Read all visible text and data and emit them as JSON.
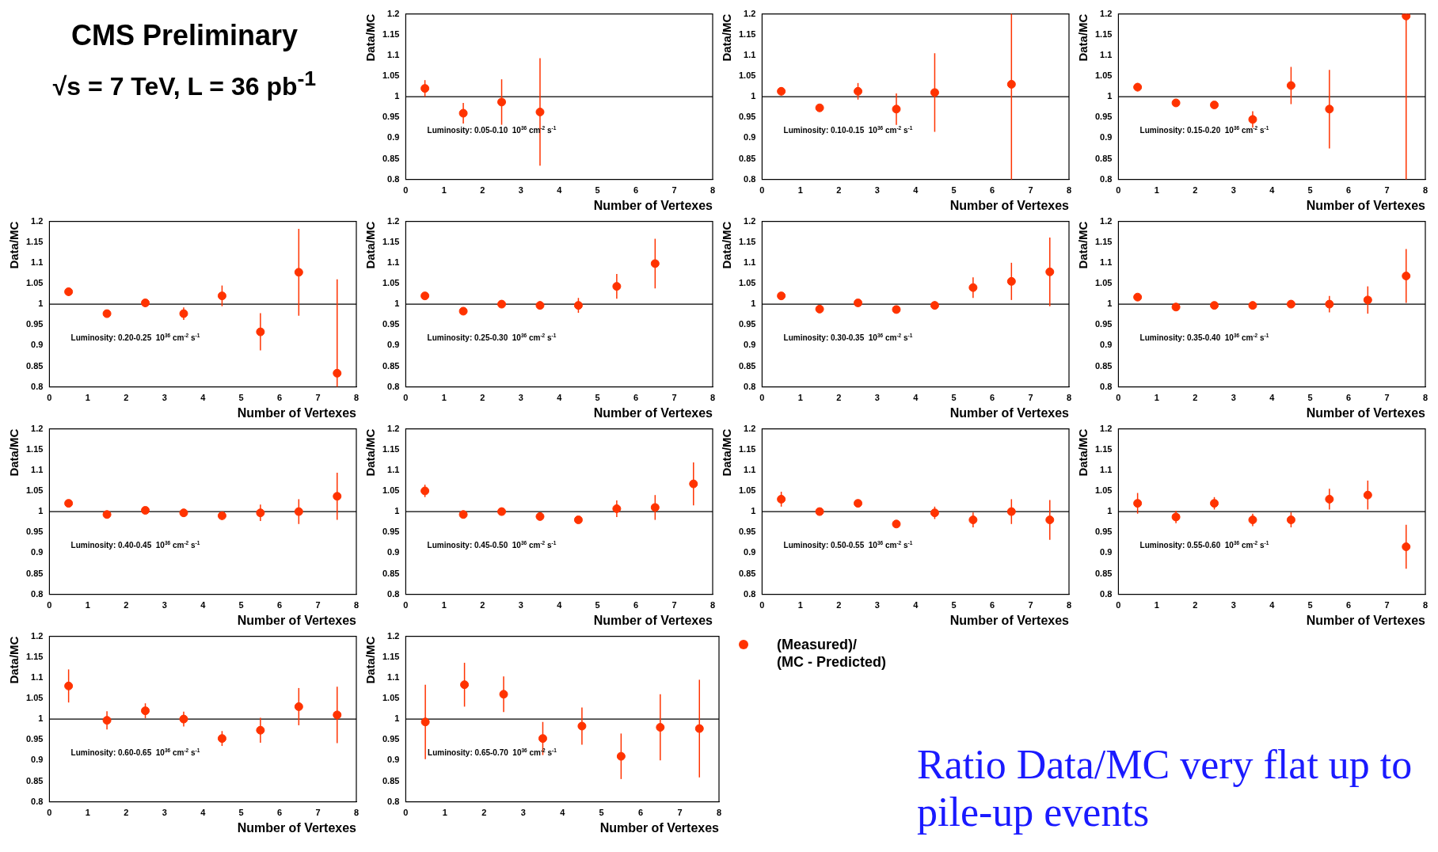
{
  "chart_data": [
    {
      "type": "other",
      "title": "CMS Preliminary",
      "subtitle": "√s = 7 TeV, L = 36 pb$^{-1}$"
    },
    {
      "type": "scatter",
      "xlabel": "Number of Vertexes",
      "ylabel": "Data/MC",
      "annotations": [
        "Luminosity: 0.05-0.10  10$^{36}$ cm$^{-2}$ s$^{-1}$"
      ],
      "xlim": [
        0,
        8
      ],
      "xticks": [
        0,
        1,
        2,
        3,
        4,
        5,
        6,
        7,
        8
      ],
      "ylim": [
        0.8,
        1.2
      ],
      "yticks": [
        0.8,
        0.85,
        0.9,
        0.95,
        1,
        1.05,
        1.1,
        1.15,
        1.2
      ],
      "marker": "circle",
      "ref_lines": [
        {
          "axis": "y",
          "value": 1
        }
      ],
      "series": [
        {
          "color": "#ff3300",
          "x": [
            0.5,
            1.5,
            2.5,
            3.5
          ],
          "values": [
            1.02,
            0.96,
            0.987,
            0.963
          ],
          "errors": [
            0.02,
            0.025,
            0.055,
            0.13
          ]
        }
      ]
    },
    {
      "type": "scatter",
      "xlabel": "Number of Vertexes",
      "ylabel": "Data/MC",
      "annotations": [
        "Luminosity: 0.10-0.15  10$^{36}$ cm$^{-2}$ s$^{-1}$"
      ],
      "xlim": [
        0,
        8
      ],
      "xticks": [
        0,
        1,
        2,
        3,
        4,
        5,
        6,
        7,
        8
      ],
      "ylim": [
        0.8,
        1.2
      ],
      "yticks": [
        0.8,
        0.85,
        0.9,
        0.95,
        1,
        1.05,
        1.1,
        1.15,
        1.2
      ],
      "marker": "circle",
      "ref_lines": [
        {
          "axis": "y",
          "value": 1
        }
      ],
      "series": [
        {
          "color": "#ff3300",
          "x": [
            0.5,
            1.5,
            2.5,
            3.5,
            4.5,
            6.5
          ],
          "values": [
            1.013,
            0.973,
            1.013,
            0.97,
            1.01,
            1.03
          ],
          "errors": [
            0.01,
            0.008,
            0.02,
            0.038,
            0.095,
            [
              0.8,
              1.2
            ]
          ]
        }
      ]
    },
    {
      "type": "scatter",
      "xlabel": "Number of Vertexes",
      "ylabel": "Data/MC",
      "annotations": [
        "Luminosity: 0.15-0.20  10$^{36}$ cm$^{-2}$ s$^{-1}$"
      ],
      "xlim": [
        0,
        8
      ],
      "xticks": [
        0,
        1,
        2,
        3,
        4,
        5,
        6,
        7,
        8
      ],
      "ylim": [
        0.8,
        1.2
      ],
      "yticks": [
        0.8,
        0.85,
        0.9,
        0.95,
        1,
        1.05,
        1.1,
        1.15,
        1.2
      ],
      "marker": "circle",
      "ref_lines": [
        {
          "axis": "y",
          "value": 1
        }
      ],
      "series": [
        {
          "color": "#ff3300",
          "x": [
            0.5,
            1.5,
            2.5,
            3.5,
            4.5,
            5.5,
            7.5
          ],
          "values": [
            1.023,
            0.985,
            0.98,
            0.945,
            1.027,
            0.97,
            1.195
          ],
          "errors": [
            0.01,
            0.008,
            0.008,
            0.02,
            0.045,
            0.095,
            [
              0.8,
              1.2
            ]
          ]
        }
      ]
    },
    {
      "type": "scatter",
      "xlabel": "Number of Vertexes",
      "ylabel": "Data/MC",
      "annotations": [
        "Luminosity: 0.20-0.25  10$^{36}$ cm$^{-2}$ s$^{-1}$"
      ],
      "xlim": [
        0,
        8
      ],
      "xticks": [
        0,
        1,
        2,
        3,
        4,
        5,
        6,
        7,
        8
      ],
      "ylim": [
        0.8,
        1.2
      ],
      "yticks": [
        0.8,
        0.85,
        0.9,
        0.95,
        1,
        1.05,
        1.1,
        1.15,
        1.2
      ],
      "marker": "circle",
      "ref_lines": [
        {
          "axis": "y",
          "value": 1
        }
      ],
      "series": [
        {
          "color": "#ff3300",
          "x": [
            0.5,
            1.5,
            2.5,
            3.5,
            4.5,
            5.5,
            6.5,
            7.5
          ],
          "values": [
            1.03,
            0.977,
            1.003,
            0.977,
            1.02,
            0.933,
            1.077,
            0.833
          ],
          "errors": [
            0.01,
            0.008,
            0.01,
            0.015,
            0.025,
            0.045,
            0.105,
            [
              0.8,
              1.06
            ]
          ]
        }
      ]
    },
    {
      "type": "scatter",
      "xlabel": "Number of Vertexes",
      "ylabel": "Data/MC",
      "annotations": [
        "Luminosity: 0.25-0.30  10$^{36}$ cm$^{-2}$ s$^{-1}$"
      ],
      "xlim": [
        0,
        8
      ],
      "xticks": [
        0,
        1,
        2,
        3,
        4,
        5,
        6,
        7,
        8
      ],
      "ylim": [
        0.8,
        1.2
      ],
      "yticks": [
        0.8,
        0.85,
        0.9,
        0.95,
        1,
        1.05,
        1.1,
        1.15,
        1.2
      ],
      "marker": "circle",
      "ref_lines": [
        {
          "axis": "y",
          "value": 1
        }
      ],
      "series": [
        {
          "color": "#ff3300",
          "x": [
            0.5,
            1.5,
            2.5,
            3.5,
            4.5,
            5.5,
            6.5
          ],
          "values": [
            1.02,
            0.983,
            1.0,
            0.997,
            0.997,
            1.043,
            1.098
          ],
          "errors": [
            0.008,
            0.008,
            0.008,
            0.01,
            0.018,
            0.03,
            0.06
          ]
        }
      ]
    },
    {
      "type": "scatter",
      "xlabel": "Number of Vertexes",
      "ylabel": "Data/MC",
      "annotations": [
        "Luminosity: 0.30-0.35  10$^{36}$ cm$^{-2}$ s$^{-1}$"
      ],
      "xlim": [
        0,
        8
      ],
      "xticks": [
        0,
        1,
        2,
        3,
        4,
        5,
        6,
        7,
        8
      ],
      "ylim": [
        0.8,
        1.2
      ],
      "yticks": [
        0.8,
        0.85,
        0.9,
        0.95,
        1,
        1.05,
        1.1,
        1.15,
        1.2
      ],
      "marker": "circle",
      "ref_lines": [
        {
          "axis": "y",
          "value": 1
        }
      ],
      "series": [
        {
          "color": "#ff3300",
          "x": [
            0.5,
            1.5,
            2.5,
            3.5,
            4.5,
            5.5,
            6.5,
            7.5
          ],
          "values": [
            1.02,
            0.988,
            1.003,
            0.987,
            0.997,
            1.04,
            1.055,
            1.078
          ],
          "errors": [
            0.008,
            0.006,
            0.008,
            0.008,
            0.01,
            0.025,
            0.045,
            0.083
          ]
        }
      ]
    },
    {
      "type": "scatter",
      "xlabel": "Number of Vertexes",
      "ylabel": "Data/MC",
      "annotations": [
        "Luminosity: 0.35-0.40  10$^{36}$ cm$^{-2}$ s$^{-1}$"
      ],
      "xlim": [
        0,
        8
      ],
      "xticks": [
        0,
        1,
        2,
        3,
        4,
        5,
        6,
        7,
        8
      ],
      "ylim": [
        0.8,
        1.2
      ],
      "yticks": [
        0.8,
        0.85,
        0.9,
        0.95,
        1,
        1.05,
        1.1,
        1.15,
        1.2
      ],
      "marker": "circle",
      "ref_lines": [
        {
          "axis": "y",
          "value": 1
        }
      ],
      "series": [
        {
          "color": "#ff3300",
          "x": [
            0.5,
            1.5,
            2.5,
            3.5,
            4.5,
            5.5,
            6.5,
            7.5
          ],
          "values": [
            1.017,
            0.993,
            0.997,
            0.997,
            1.0,
            1.0,
            1.01,
            1.068
          ],
          "errors": [
            0.008,
            0.006,
            0.006,
            0.007,
            0.008,
            0.02,
            0.033,
            0.065
          ]
        }
      ]
    },
    {
      "type": "scatter",
      "xlabel": "Number of Vertexes",
      "ylabel": "Data/MC",
      "annotations": [
        "Luminosity: 0.40-0.45  10$^{36}$ cm$^{-2}$ s$^{-1}$"
      ],
      "xlim": [
        0,
        8
      ],
      "xticks": [
        0,
        1,
        2,
        3,
        4,
        5,
        6,
        7,
        8
      ],
      "ylim": [
        0.8,
        1.2
      ],
      "yticks": [
        0.8,
        0.85,
        0.9,
        0.95,
        1,
        1.05,
        1.1,
        1.15,
        1.2
      ],
      "marker": "circle",
      "ref_lines": [
        {
          "axis": "y",
          "value": 1
        }
      ],
      "series": [
        {
          "color": "#ff3300",
          "x": [
            0.5,
            1.5,
            2.5,
            3.5,
            4.5,
            5.5,
            6.5,
            7.5
          ],
          "values": [
            1.02,
            0.993,
            1.003,
            0.997,
            0.99,
            0.997,
            1.0,
            1.037
          ],
          "errors": [
            0.008,
            0.006,
            0.007,
            0.007,
            0.01,
            0.02,
            0.03,
            0.057
          ]
        }
      ]
    },
    {
      "type": "scatter",
      "xlabel": "Number of Vertexes",
      "ylabel": "Data/MC",
      "annotations": [
        "Luminosity: 0.45-0.50  10$^{36}$ cm$^{-2}$ s$^{-1}$"
      ],
      "xlim": [
        0,
        8
      ],
      "xticks": [
        0,
        1,
        2,
        3,
        4,
        5,
        6,
        7,
        8
      ],
      "ylim": [
        0.8,
        1.2
      ],
      "yticks": [
        0.8,
        0.85,
        0.9,
        0.95,
        1,
        1.05,
        1.1,
        1.15,
        1.2
      ],
      "marker": "circle",
      "ref_lines": [
        {
          "axis": "y",
          "value": 1
        }
      ],
      "series": [
        {
          "color": "#ff3300",
          "x": [
            0.5,
            1.5,
            2.5,
            3.5,
            4.5,
            5.5,
            6.5,
            7.5
          ],
          "values": [
            1.05,
            0.993,
            1.0,
            0.988,
            0.98,
            1.007,
            1.01,
            1.067
          ],
          "errors": [
            0.015,
            0.007,
            0.008,
            0.008,
            0.008,
            0.02,
            0.03,
            0.052
          ]
        }
      ]
    },
    {
      "type": "scatter",
      "xlabel": "Number of Vertexes",
      "ylabel": "Data/MC",
      "annotations": [
        "Luminosity: 0.50-0.55  10$^{36}$ cm$^{-2}$ s$^{-1}$"
      ],
      "xlim": [
        0,
        8
      ],
      "xticks": [
        0,
        1,
        2,
        3,
        4,
        5,
        6,
        7,
        8
      ],
      "ylim": [
        0.8,
        1.2
      ],
      "yticks": [
        0.8,
        0.85,
        0.9,
        0.95,
        1,
        1.05,
        1.1,
        1.15,
        1.2
      ],
      "marker": "circle",
      "ref_lines": [
        {
          "axis": "y",
          "value": 1
        }
      ],
      "series": [
        {
          "color": "#ff3300",
          "x": [
            0.5,
            1.5,
            2.5,
            3.5,
            4.5,
            5.5,
            6.5,
            7.5
          ],
          "values": [
            1.03,
            1.0,
            1.02,
            0.97,
            0.997,
            0.98,
            1.0,
            0.98
          ],
          "errors": [
            0.018,
            0.007,
            0.008,
            0.008,
            0.015,
            0.018,
            0.03,
            0.048
          ]
        }
      ]
    },
    {
      "type": "scatter",
      "xlabel": "Number of Vertexes",
      "ylabel": "Data/MC",
      "annotations": [
        "Luminosity: 0.55-0.60  10$^{36}$ cm$^{-2}$ s$^{-1}$"
      ],
      "xlim": [
        0,
        8
      ],
      "xticks": [
        0,
        1,
        2,
        3,
        4,
        5,
        6,
        7,
        8
      ],
      "ylim": [
        0.8,
        1.2
      ],
      "yticks": [
        0.8,
        0.85,
        0.9,
        0.95,
        1,
        1.05,
        1.1,
        1.15,
        1.2
      ],
      "marker": "circle",
      "ref_lines": [
        {
          "axis": "y",
          "value": 1
        }
      ],
      "series": [
        {
          "color": "#ff3300",
          "x": [
            0.5,
            1.5,
            2.5,
            3.5,
            4.5,
            5.5,
            6.5,
            7.5
          ],
          "values": [
            1.02,
            0.987,
            1.02,
            0.98,
            0.98,
            1.03,
            1.04,
            0.915
          ],
          "errors": [
            0.025,
            0.015,
            0.015,
            0.015,
            0.018,
            0.025,
            0.035,
            0.053
          ]
        }
      ]
    },
    {
      "type": "scatter",
      "xlabel": "Number of Vertexes",
      "ylabel": "Data/MC",
      "annotations": [
        "Luminosity: 0.60-0.65  10$^{36}$ cm$^{-2}$ s$^{-1}$"
      ],
      "xlim": [
        0,
        8
      ],
      "xticks": [
        0,
        1,
        2,
        3,
        4,
        5,
        6,
        7,
        8
      ],
      "ylim": [
        0.8,
        1.2
      ],
      "yticks": [
        0.8,
        0.85,
        0.9,
        0.95,
        1,
        1.05,
        1.1,
        1.15,
        1.2
      ],
      "marker": "circle",
      "ref_lines": [
        {
          "axis": "y",
          "value": 1
        }
      ],
      "series": [
        {
          "color": "#ff3300",
          "x": [
            0.5,
            1.5,
            2.5,
            3.5,
            4.5,
            5.5,
            6.5,
            7.5
          ],
          "values": [
            1.08,
            0.997,
            1.02,
            1.0,
            0.953,
            0.973,
            1.03,
            1.01
          ],
          "errors": [
            0.04,
            0.022,
            0.018,
            0.018,
            0.018,
            0.03,
            0.045,
            0.068
          ]
        }
      ]
    },
    {
      "type": "scatter",
      "xlabel": "Number of Vertexes",
      "ylabel": "Data/MC",
      "annotations": [
        "Luminosity: 0.65-0.70  10$^{36}$ cm$^{-2}$ s$^{-1}$"
      ],
      "xlim": [
        0,
        8
      ],
      "xticks": [
        0,
        1,
        2,
        3,
        4,
        5,
        6,
        7,
        8
      ],
      "ylim": [
        0.8,
        1.2
      ],
      "yticks": [
        0.8,
        0.85,
        0.9,
        0.95,
        1,
        1.05,
        1.1,
        1.15,
        1.2
      ],
      "marker": "circle",
      "ref_lines": [
        {
          "axis": "y",
          "value": 1
        }
      ],
      "legend": "right",
      "series": [
        {
          "name": "(Measured)/\n(MC - Predicted)",
          "color": "#ff3300",
          "x": [
            0.5,
            1.5,
            2.5,
            3.5,
            4.5,
            5.5,
            6.5,
            7.5
          ],
          "values": [
            0.993,
            1.083,
            1.06,
            0.953,
            0.983,
            0.91,
            0.98,
            0.977
          ],
          "errors": [
            0.09,
            0.053,
            0.043,
            0.04,
            0.045,
            0.055,
            0.08,
            0.118
          ]
        }
      ]
    },
    {
      "type": "other",
      "annotations": [
        "Ratio Data/MC very flat up to pile-up events"
      ]
    }
  ]
}
